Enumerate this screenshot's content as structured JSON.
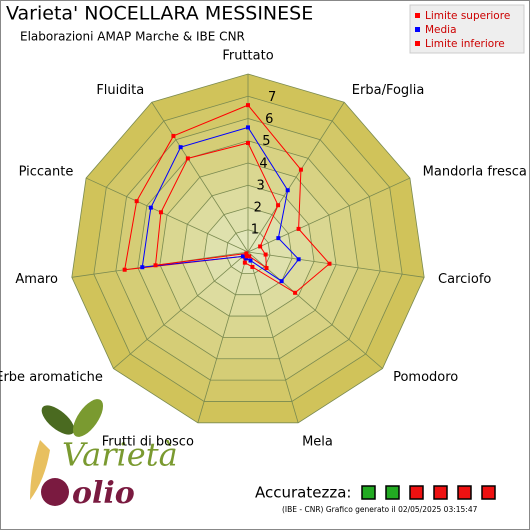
{
  "chart_data": {
    "type": "radar",
    "title": "Varieta' NOCELLARA MESSINESE",
    "subtitle": "Elaborazioni AMAP Marche & IBE CNR",
    "categories": [
      "Fruttato",
      "Erba/Foglia",
      "Mandorla fresca",
      "Carciofo",
      "Pomodoro",
      "Mela",
      "Frutti di bosco",
      "Erbe aromatiche",
      "Amaro",
      "Piccante",
      "Fluidita"
    ],
    "series": [
      {
        "name": "Limite superiore",
        "color": "#ff0000",
        "values": [
          6.6,
          4.4,
          2.5,
          3.7,
          2.8,
          0.7,
          0.5,
          0.3,
          5.6,
          5.5,
          6.2
        ]
      },
      {
        "name": "Media",
        "color": "#0000ff",
        "values": [
          5.6,
          3.3,
          1.5,
          2.3,
          2.0,
          0.4,
          0.3,
          0.3,
          4.8,
          4.8,
          5.6
        ]
      },
      {
        "name": "Limite inferiore",
        "color": "#ff0000",
        "values": [
          4.9,
          2.5,
          0.6,
          0.8,
          1.1,
          0.2,
          0.2,
          0.1,
          4.2,
          4.3,
          5.0
        ]
      }
    ],
    "rlim": [
      0,
      8
    ],
    "rticks": [
      1,
      2,
      3,
      4,
      5,
      6,
      7
    ],
    "accuracy_label": "Accuratezza:",
    "footer": "(IBE - CNR) Grafico generato il 02/05/2025 03:15:47",
    "logo": {
      "word1": "Varietà",
      "word2": "olio"
    }
  }
}
